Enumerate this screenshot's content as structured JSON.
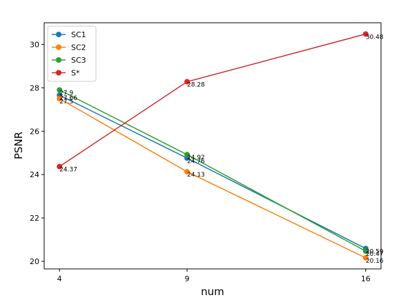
{
  "chart_data": {
    "type": "line",
    "x": [
      4,
      9,
      16
    ],
    "xticks": [
      "4",
      "9",
      "16"
    ],
    "yticks": [
      "20",
      "22",
      "24",
      "26",
      "28",
      "30"
    ],
    "xlabel": "num",
    "ylabel": "PSNR",
    "xlim": [
      3.4,
      16.6
    ],
    "ylim": [
      19.65,
      31.0
    ],
    "grid": false,
    "legend_position": "top-left",
    "series": [
      {
        "name": "SC1",
        "color": "#1f77b4",
        "values": [
          27.66,
          24.76,
          20.59
        ],
        "labels": [
          "27.66",
          "24.76",
          "20.59"
        ]
      },
      {
        "name": "SC2",
        "color": "#ff7f0e",
        "values": [
          27.5,
          24.13,
          20.16
        ],
        "labels": [
          "27.5",
          "24.13",
          "20.16"
        ]
      },
      {
        "name": "SC3",
        "color": "#2ca02c",
        "values": [
          27.9,
          24.92,
          20.47
        ],
        "labels": [
          "27.9",
          "24.92",
          "20.47"
        ]
      },
      {
        "name": "S*",
        "color": "#d62728",
        "values": [
          24.37,
          28.28,
          30.48
        ],
        "labels": [
          "24.37",
          "28.28",
          "30.48"
        ]
      }
    ]
  }
}
